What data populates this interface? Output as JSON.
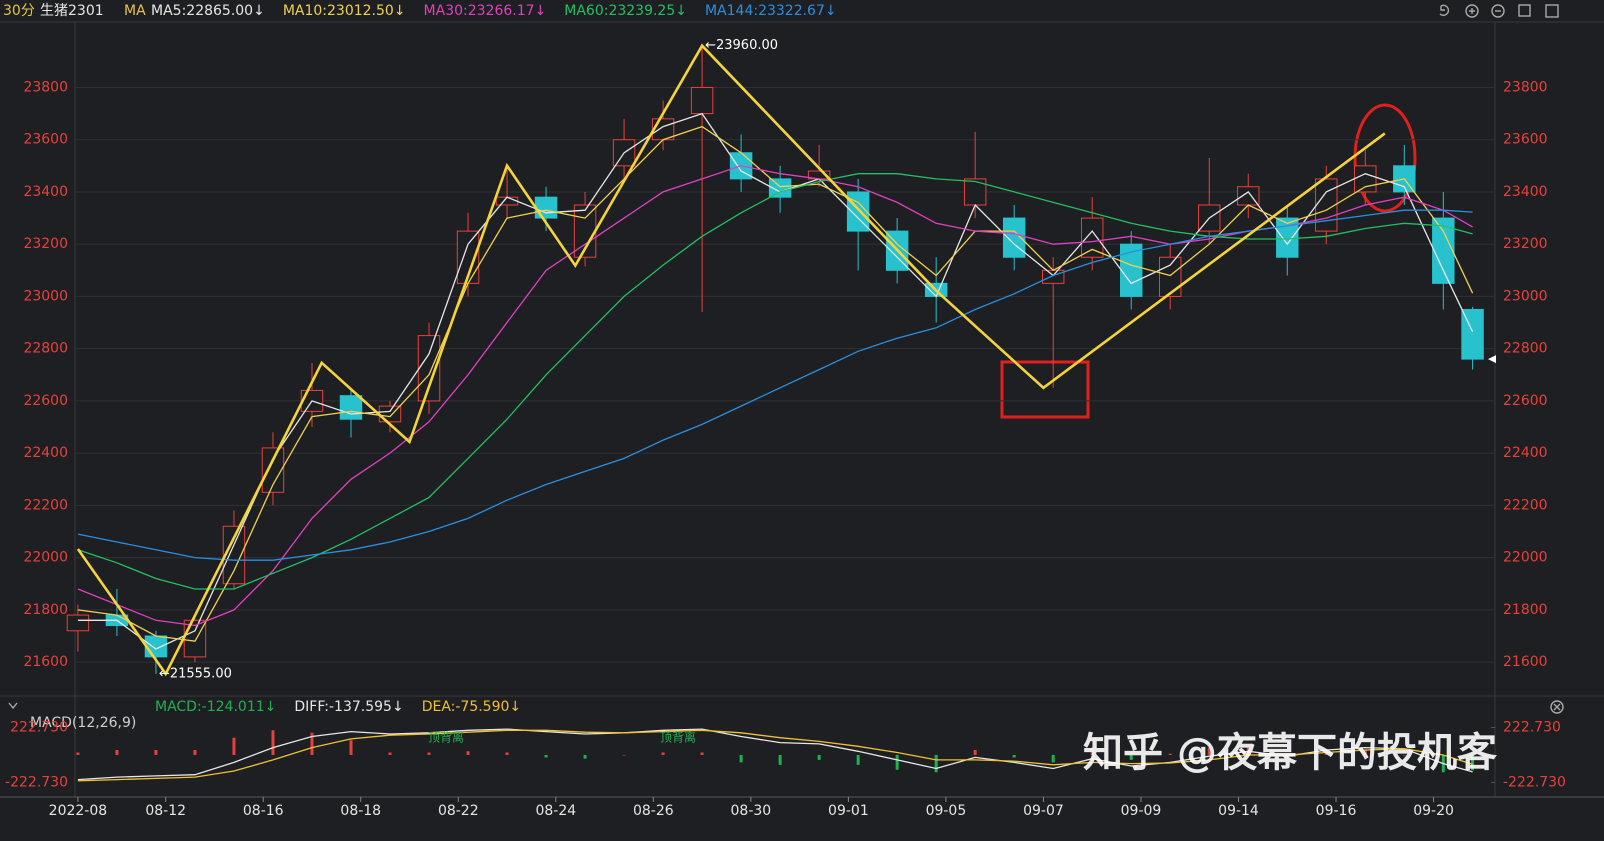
{
  "header": {
    "period": "30分",
    "symbol": "生猪2301",
    "indicator": "MA"
  },
  "watermark": "知乎 @夜幕下的投机客",
  "chart_data": [
    {
      "type": "candlestick",
      "x": [
        0,
        4,
        8,
        12,
        16,
        20,
        24,
        28,
        32,
        36,
        40,
        44,
        48,
        52,
        56,
        60,
        64,
        68,
        72,
        76,
        80,
        84,
        88,
        92,
        96,
        100,
        104,
        108,
        112,
        116,
        120,
        124,
        128,
        132,
        136,
        140,
        143
      ],
      "open": [
        21720,
        21780,
        21700,
        21620,
        21900,
        22250,
        22560,
        22620,
        22520,
        22600,
        23050,
        23350,
        23380,
        23150,
        23500,
        23600,
        23700,
        23550,
        23450,
        23450,
        23400,
        23250,
        23050,
        23350,
        23300,
        23050,
        23150,
        23200,
        23000,
        23250,
        23350,
        23300,
        23250,
        23400,
        23500,
        23300,
        22950
      ],
      "high": [
        21820,
        21880,
        21720,
        21780,
        22180,
        22480,
        22745,
        22640,
        22600,
        22900,
        23320,
        23500,
        23420,
        23400,
        23680,
        23750,
        23960,
        23620,
        23500,
        23580,
        23450,
        23300,
        23150,
        23630,
        23350,
        23150,
        23380,
        23250,
        23200,
        23530,
        23470,
        23350,
        23500,
        23560,
        23580,
        23400,
        22960
      ],
      "low": [
        21640,
        21700,
        21555,
        21600,
        21880,
        22200,
        22500,
        22460,
        22480,
        22550,
        23000,
        23300,
        23250,
        23115,
        23450,
        23560,
        22940,
        23400,
        23320,
        23420,
        23100,
        23050,
        22900,
        23300,
        23100,
        22650,
        23100,
        22950,
        22950,
        23200,
        23300,
        23080,
        23200,
        23350,
        23350,
        22950,
        22720
      ],
      "close": [
        21780,
        21740,
        21620,
        21760,
        22120,
        22420,
        22640,
        22530,
        22580,
        22850,
        23250,
        23380,
        23300,
        23350,
        23600,
        23680,
        23800,
        23450,
        23380,
        23480,
        23250,
        23100,
        23000,
        23450,
        23150,
        23100,
        23300,
        23000,
        23150,
        23350,
        23420,
        23150,
        23450,
        23500,
        23400,
        23050,
        22760
      ],
      "up_color": "#e8413a",
      "down_color": "#27c2cd",
      "series": [
        {
          "name": "MA5:22865.00↓",
          "color": "#e6e6e6",
          "values": [
            21760,
            21760,
            21650,
            21720,
            22050,
            22380,
            22600,
            22550,
            22560,
            22780,
            23200,
            23380,
            23320,
            23330,
            23550,
            23650,
            23700,
            23480,
            23400,
            23450,
            23300,
            23150,
            23000,
            23350,
            23200,
            23080,
            23250,
            23050,
            23120,
            23300,
            23400,
            23200,
            23400,
            23470,
            23420,
            23100,
            22865
          ]
        },
        {
          "name": "MA10:23012.50↓",
          "color": "#f0d050",
          "values": [
            21800,
            21780,
            21700,
            21680,
            21950,
            22280,
            22540,
            22560,
            22540,
            22700,
            23050,
            23300,
            23330,
            23300,
            23450,
            23600,
            23650,
            23550,
            23420,
            23430,
            23360,
            23200,
            23080,
            23250,
            23250,
            23100,
            23180,
            23120,
            23080,
            23200,
            23350,
            23280,
            23330,
            23420,
            23450,
            23250,
            23012.5
          ]
        },
        {
          "name": "MA30:23266.17↓",
          "color": "#e040c0",
          "values": [
            21880,
            21820,
            21760,
            21740,
            21800,
            21950,
            22150,
            22300,
            22400,
            22520,
            22700,
            22900,
            23100,
            23200,
            23300,
            23400,
            23450,
            23500,
            23470,
            23450,
            23420,
            23360,
            23280,
            23250,
            23240,
            23200,
            23210,
            23230,
            23200,
            23220,
            23250,
            23270,
            23300,
            23350,
            23380,
            23330,
            23266.17
          ]
        },
        {
          "name": "MA60:23239.25↓",
          "color": "#22c062",
          "values": [
            22030,
            21980,
            21920,
            21880,
            21880,
            21940,
            22000,
            22070,
            22150,
            22230,
            22380,
            22530,
            22700,
            22850,
            23000,
            23120,
            23230,
            23320,
            23400,
            23440,
            23470,
            23470,
            23450,
            23440,
            23400,
            23360,
            23320,
            23280,
            23250,
            23230,
            23220,
            23220,
            23230,
            23260,
            23280,
            23270,
            23239.25
          ]
        },
        {
          "name": "MA144:23322.67↓",
          "color": "#2a8fe0",
          "values": [
            22090,
            22060,
            22030,
            22000,
            21990,
            21990,
            22010,
            22030,
            22060,
            22100,
            22150,
            22220,
            22280,
            22330,
            22380,
            22450,
            22510,
            22580,
            22650,
            22720,
            22790,
            22840,
            22880,
            22950,
            23010,
            23080,
            23130,
            23170,
            23200,
            23230,
            23250,
            23270,
            23290,
            23310,
            23330,
            23330,
            23322.67
          ]
        }
      ],
      "zigzag": {
        "color": "#f5d33a",
        "x": [
          0,
          9,
          25,
          34,
          44,
          51,
          64,
          88,
          99,
          134
        ],
        "values": [
          22033,
          21555,
          22746,
          22443,
          23501,
          23118,
          23960,
          23022,
          22650,
          23624
        ]
      },
      "max_label": "←23960.00",
      "min_label": "←21555.00",
      "xlim": [
        -0.3,
        145.3
      ],
      "ylim": [
        21520,
        24020
      ],
      "yticks": [
        21600,
        21800,
        22000,
        22200,
        22400,
        22600,
        22800,
        23000,
        23200,
        23400,
        23600,
        23800
      ],
      "grid": true
    },
    {
      "type": "macd",
      "title": "MACD(12,26,9)",
      "x": [
        0,
        4,
        8,
        12,
        16,
        20,
        24,
        28,
        32,
        36,
        40,
        44,
        48,
        52,
        56,
        60,
        64,
        68,
        72,
        76,
        80,
        84,
        88,
        92,
        96,
        100,
        104,
        108,
        112,
        116,
        120,
        124,
        128,
        132,
        136,
        140,
        143
      ],
      "histogram": {
        "name": "MACD:-124.011↓",
        "color": "#20b050",
        "up_color": "#e8413a",
        "down_color": "#20b050",
        "values": [
          20,
          40,
          40,
          40,
          140,
          200,
          180,
          120,
          20,
          20,
          30,
          20,
          -20,
          -30,
          0,
          20,
          20,
          -60,
          -80,
          -40,
          -80,
          -120,
          -140,
          40,
          -20,
          -60,
          60,
          -40,
          10,
          60,
          60,
          -20,
          40,
          40,
          0,
          -140,
          -124.011
        ]
      },
      "series": [
        {
          "name": "DIFF:-137.595↓",
          "color": "#e6e6e6",
          "values": [
            -200,
            -180,
            -170,
            -160,
            -60,
            60,
            150,
            190,
            170,
            180,
            200,
            210,
            190,
            170,
            180,
            200,
            210,
            150,
            100,
            90,
            30,
            -40,
            -110,
            -20,
            -60,
            -110,
            -30,
            -90,
            -60,
            -10,
            30,
            -10,
            40,
            60,
            50,
            -70,
            -137.595
          ]
        },
        {
          "name": "DEA:-75.590↓",
          "color": "#f0c030",
          "values": [
            -210,
            -200,
            -190,
            -180,
            -130,
            -40,
            60,
            130,
            160,
            170,
            185,
            200,
            200,
            185,
            180,
            190,
            200,
            180,
            140,
            110,
            70,
            20,
            -40,
            -40,
            -50,
            -80,
            -60,
            -70,
            -65,
            -40,
            0,
            0,
            20,
            40,
            50,
            0,
            -75.59
          ]
        }
      ],
      "annotations": [
        "顶背离",
        "顶背离"
      ],
      "xlim": [
        -0.3,
        145.3
      ],
      "ylim": [
        -325,
        300
      ],
      "yticks": [
        {
          "value": 222.73,
          "label": "222.730"
        },
        {
          "value": -222.73,
          "label": "-222.730"
        }
      ],
      "xticks": [
        {
          "value": 0,
          "label": "2022-08"
        },
        {
          "value": 9,
          "label": "08-12"
        },
        {
          "value": 19,
          "label": "08-16"
        },
        {
          "value": 29,
          "label": "08-18"
        },
        {
          "value": 39,
          "label": "08-22"
        },
        {
          "value": 49,
          "label": "08-24"
        },
        {
          "value": 59,
          "label": "08-26"
        },
        {
          "value": 69,
          "label": "08-30"
        },
        {
          "value": 79,
          "label": "09-01"
        },
        {
          "value": 89,
          "label": "09-05"
        },
        {
          "value": 99,
          "label": "09-07"
        },
        {
          "value": 109,
          "label": "09-09"
        },
        {
          "value": 119,
          "label": "09-14"
        },
        {
          "value": 129,
          "label": "09-16"
        },
        {
          "value": 139,
          "label": "09-20"
        }
      ]
    }
  ]
}
